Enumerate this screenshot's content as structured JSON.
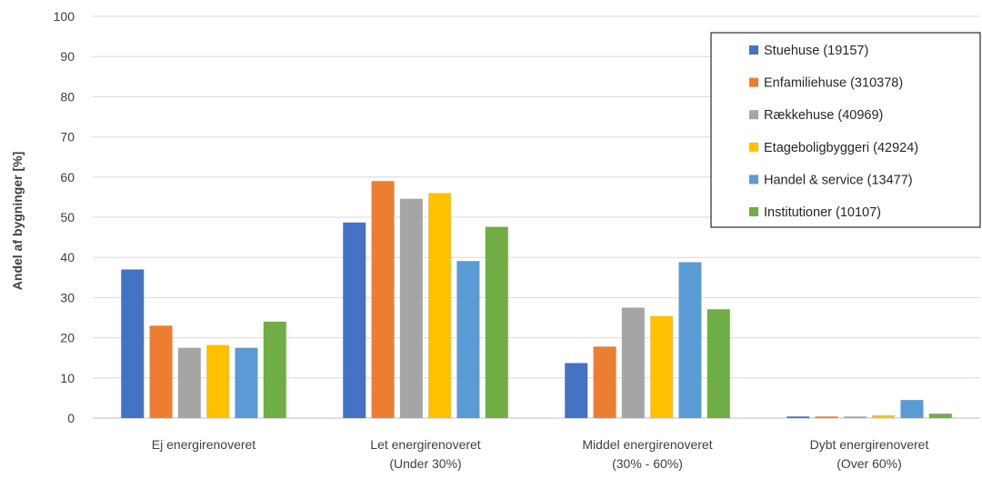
{
  "chart_data": {
    "type": "bar",
    "title": "",
    "xlabel": "",
    "ylabel": "Andel af bygninger [%]",
    "ylim": [
      0,
      100
    ],
    "yticks": [
      0,
      10,
      20,
      30,
      40,
      50,
      60,
      70,
      80,
      90,
      100
    ],
    "grid": true,
    "legend_position": "top-right",
    "categories": [
      [
        "Ej energirenoveret"
      ],
      [
        "Let energirenoveret",
        "(Under 30%)"
      ],
      [
        "Middel energirenoveret",
        "(30% - 60%)"
      ],
      [
        "Dybt energirenoveret",
        "(Over 60%)"
      ]
    ],
    "series": [
      {
        "name": "Stuehuse (19157)",
        "color": "#4472C4",
        "values": [
          37,
          48.7,
          13.7,
          0.4
        ]
      },
      {
        "name": "Enfamiliehuse (310378)",
        "color": "#ED7D31",
        "values": [
          23,
          59,
          17.8,
          0.4
        ]
      },
      {
        "name": "Rækkehuse (40969)",
        "color": "#A5A5A5",
        "values": [
          17.5,
          54.6,
          27.5,
          0.4
        ]
      },
      {
        "name": "Etageboligbyggeri (42924)",
        "color": "#FFC000",
        "values": [
          18.2,
          56,
          25.4,
          0.7
        ]
      },
      {
        "name": "Handel & service (13477)",
        "color": "#5B9BD5",
        "values": [
          17.5,
          39.1,
          38.8,
          4.5
        ]
      },
      {
        "name": "Institutioner (10107)",
        "color": "#70AD47",
        "values": [
          24,
          47.6,
          27.1,
          1.1
        ]
      }
    ]
  }
}
